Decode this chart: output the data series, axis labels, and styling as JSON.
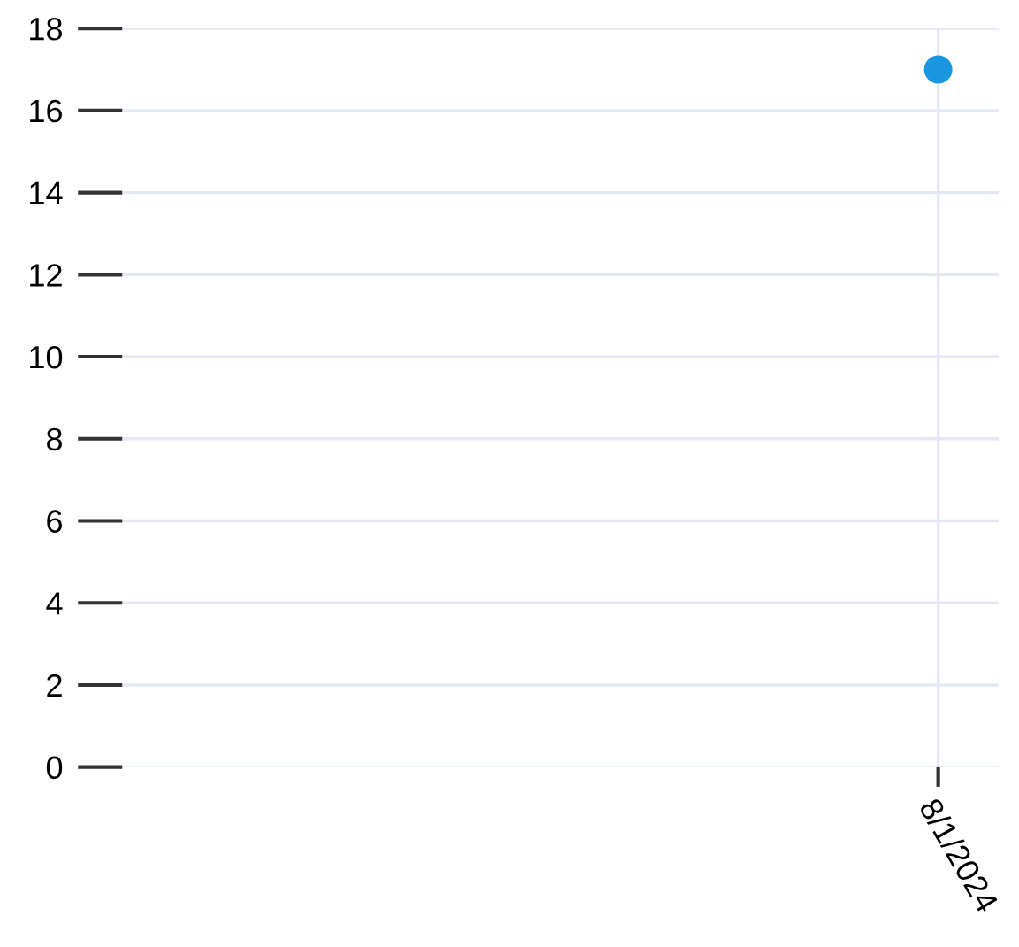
{
  "chart_data": {
    "type": "scatter",
    "categories": [
      "8/1/2024"
    ],
    "series": [
      {
        "color": "#1a96e0",
        "values": [
          17
        ]
      }
    ],
    "ylim": [
      0,
      18
    ],
    "yticks": [
      0,
      2,
      4,
      6,
      8,
      10,
      12,
      14,
      16,
      18
    ],
    "grid": true,
    "marker": "circle",
    "legend": false
  }
}
